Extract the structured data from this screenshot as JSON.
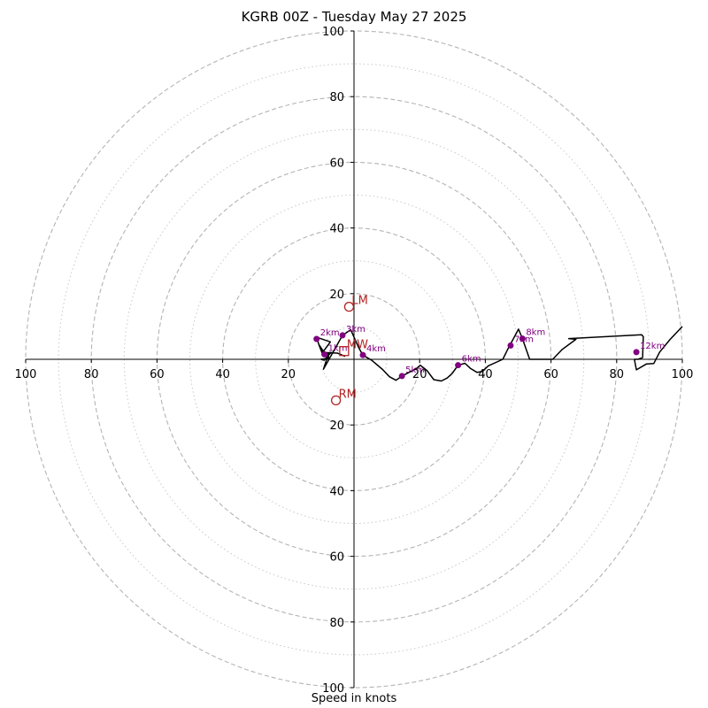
{
  "chart_data": {
    "type": "line",
    "title": "KGRB 00Z - Tuesday May 27 2025",
    "xlabel": "Speed in knots",
    "ylabel": "",
    "xlim": [
      -100,
      100
    ],
    "ylim": [
      -100,
      100
    ],
    "ring_major": [
      20,
      40,
      60,
      80,
      100
    ],
    "ring_minor": [
      10,
      30,
      50,
      70,
      90
    ],
    "axis_ticks": {
      "x": [
        {
          "v": -100,
          "label": "100"
        },
        {
          "v": -80,
          "label": "80"
        },
        {
          "v": -60,
          "label": "60"
        },
        {
          "v": -40,
          "label": "40"
        },
        {
          "v": -20,
          "label": "20"
        },
        {
          "v": 20,
          "label": "20"
        },
        {
          "v": 40,
          "label": "40"
        },
        {
          "v": 60,
          "label": "60"
        },
        {
          "v": 80,
          "label": "80"
        },
        {
          "v": 100,
          "label": "100"
        }
      ],
      "y": [
        {
          "v": 100,
          "label": "100"
        },
        {
          "v": 80,
          "label": "80"
        },
        {
          "v": 60,
          "label": "60"
        },
        {
          "v": 40,
          "label": "40"
        },
        {
          "v": 20,
          "label": "20"
        },
        {
          "v": -20,
          "label": "20"
        },
        {
          "v": -40,
          "label": "40"
        },
        {
          "v": -60,
          "label": "60"
        },
        {
          "v": -80,
          "label": "80"
        },
        {
          "v": -100,
          "label": "100"
        }
      ]
    },
    "series": [
      {
        "name": "",
        "color": "#000000",
        "points": [
          [
            -2.7,
            0.9
          ],
          [
            -5.1,
            1.9
          ],
          [
            -9.7,
            2.1
          ],
          [
            -10.7,
            4.5
          ],
          [
            -11.4,
            6.7
          ],
          [
            -7.2,
            5.3
          ],
          [
            -9.7,
            1.9
          ],
          [
            -10.7,
            4.5
          ],
          [
            -9.2,
            2.2
          ],
          [
            -8.1,
            1.9
          ],
          [
            -7.0,
            2.1
          ],
          [
            -9.1,
            -0.3
          ],
          [
            -10.0,
            0.0
          ],
          [
            -7.8,
            0.3
          ],
          [
            -7.7,
            1.9
          ],
          [
            -9.3,
            -3.0
          ],
          [
            -3.5,
            7.3
          ],
          [
            -1.0,
            9.0
          ],
          [
            1.4,
            3.6
          ],
          [
            2.7,
            1.3
          ],
          [
            5.4,
            -0.3
          ],
          [
            8.7,
            -3.1
          ],
          [
            10.8,
            -5.3
          ],
          [
            12.8,
            -6.4
          ],
          [
            14.6,
            -5.1
          ],
          [
            19.0,
            -2.8
          ],
          [
            20.2,
            -1.8
          ],
          [
            22.2,
            -3.4
          ],
          [
            24.3,
            -6.2
          ],
          [
            26.6,
            -6.6
          ],
          [
            28.4,
            -5.7
          ],
          [
            29.9,
            -4.3
          ],
          [
            31.7,
            -1.8
          ],
          [
            33.8,
            -1.2
          ],
          [
            35.5,
            -2.8
          ],
          [
            37.5,
            -4.0
          ],
          [
            39.1,
            -3.7
          ],
          [
            40.9,
            -2.0
          ],
          [
            45.3,
            0.0
          ],
          [
            46.8,
            3.0
          ],
          [
            50.1,
            9.2
          ],
          [
            51.3,
            6.3
          ],
          [
            53.5,
            0.0
          ],
          [
            56.5,
            0.0
          ],
          [
            60.5,
            0.0
          ],
          [
            63.4,
            3.0
          ],
          [
            67.6,
            6.1
          ],
          [
            65.4,
            6.3
          ],
          [
            87.6,
            7.5
          ],
          [
            88.1,
            6.9
          ],
          [
            87.9,
            0.5
          ],
          [
            86.5,
            0.0
          ],
          [
            85.4,
            0.0
          ],
          [
            86.0,
            -3.2
          ],
          [
            89.1,
            -1.4
          ],
          [
            91.3,
            -1.3
          ],
          [
            93.1,
            2.2
          ],
          [
            96.3,
            6.1
          ],
          [
            100.0,
            10.0
          ]
        ]
      }
    ],
    "height_markers": [
      {
        "label": "1km",
        "x": -9.0,
        "y": 1.5
      },
      {
        "label": "2km",
        "x": -11.4,
        "y": 6.2
      },
      {
        "label": "3km",
        "x": -3.5,
        "y": 7.3
      },
      {
        "label": "4km",
        "x": 2.7,
        "y": 1.3
      },
      {
        "label": "5km",
        "x": 14.6,
        "y": -5.1
      },
      {
        "label": "6km",
        "x": 31.7,
        "y": -1.8
      },
      {
        "label": "7km",
        "x": 47.7,
        "y": 4.2
      },
      {
        "label": "8km",
        "x": 51.3,
        "y": 6.3
      },
      {
        "label": "12km",
        "x": 86.0,
        "y": 2.2
      }
    ],
    "motion_markers": [
      {
        "label": "LM",
        "x": -1.5,
        "y": 16.0
      },
      {
        "label": "RM",
        "x": -5.5,
        "y": -12.5
      },
      {
        "label": "MW",
        "x": -3.0,
        "y": 2.5
      }
    ],
    "marker_color": "#800080",
    "motion_color": "#b22222",
    "grid": true
  }
}
